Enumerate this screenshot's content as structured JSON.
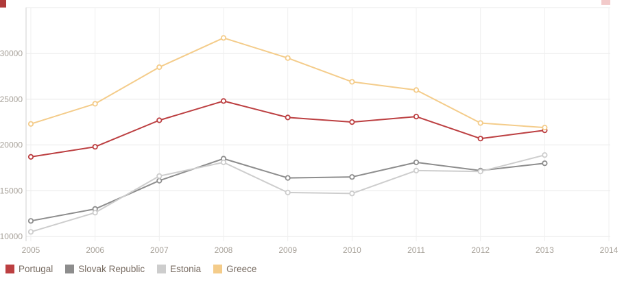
{
  "theme": {
    "background": "#ffffff",
    "grid_horizontal": "#e7e7e7",
    "grid_vertical": "#efefef",
    "axis_line": "#d2d2d2",
    "tick_text": "#a7a199",
    "legend_text": "#776b61",
    "corner_top_left": "#b03a3a",
    "corner_top_right": "#f2caca"
  },
  "chart_data": {
    "type": "line",
    "title": "",
    "xlabel": "",
    "ylabel": "",
    "grid": true,
    "legend_position": "bottom-left",
    "x": [
      2005,
      2006,
      2007,
      2008,
      2009,
      2010,
      2011,
      2012,
      2013
    ],
    "x_ticks": [
      2005,
      2006,
      2007,
      2008,
      2009,
      2010,
      2011,
      2012,
      2013,
      2014
    ],
    "y_ticks": [
      10000,
      15000,
      20000,
      25000,
      30000
    ],
    "ylim": [
      9700,
      35000
    ],
    "series": [
      {
        "name": "Portugal",
        "color": "#bc3f41",
        "values": [
          18700,
          19800,
          22700,
          24800,
          23000,
          22500,
          23100,
          20700,
          21600
        ]
      },
      {
        "name": "Slovak Republic",
        "color": "#8d8d8d",
        "values": [
          11700,
          13000,
          16100,
          18500,
          16400,
          16500,
          18100,
          17200,
          18000
        ]
      },
      {
        "name": "Estonia",
        "color": "#cdcdcd",
        "values": [
          10500,
          12600,
          16600,
          18100,
          14800,
          14700,
          17200,
          17100,
          18900
        ]
      },
      {
        "name": "Greece",
        "color": "#f4cc8a",
        "values": [
          22300,
          24500,
          28500,
          31700,
          29500,
          26900,
          26000,
          22400,
          21900
        ]
      }
    ]
  }
}
